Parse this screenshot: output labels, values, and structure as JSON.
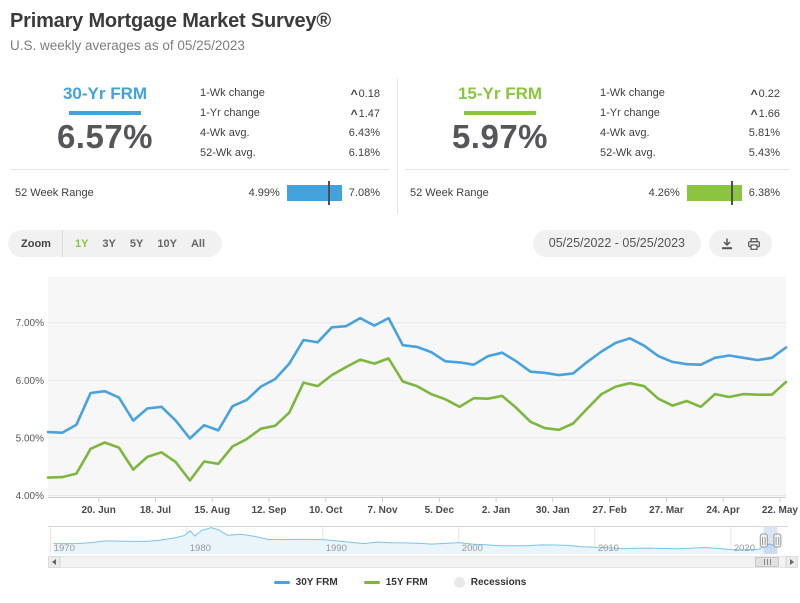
{
  "header": {
    "title": "Primary Mortgage Market Survey®",
    "subtitle": "U.S. weekly averages as of 05/25/2023"
  },
  "cards": [
    {
      "name": "30-Yr FRM",
      "rate": "6.57%",
      "accent_color": "#41a2dc",
      "stats": [
        {
          "label": "1-Wk change",
          "value": "0.18",
          "direction": "up"
        },
        {
          "label": "1-Yr change",
          "value": "1.47",
          "direction": "up"
        },
        {
          "label": "4-Wk avg.",
          "value": "6.43%",
          "direction": ""
        },
        {
          "label": "52-Wk avg.",
          "value": "6.18%",
          "direction": ""
        }
      ],
      "week_range": {
        "label": "52 Week Range",
        "low": "4.99%",
        "high": "7.08%",
        "marker_pct": 75.6
      }
    },
    {
      "name": "15-Yr FRM",
      "rate": "5.97%",
      "accent_color": "#8bc540",
      "stats": [
        {
          "label": "1-Wk change",
          "value": "0.22",
          "direction": "up"
        },
        {
          "label": "1-Yr change",
          "value": "1.66",
          "direction": "up"
        },
        {
          "label": "4-Wk avg.",
          "value": "5.81%",
          "direction": ""
        },
        {
          "label": "52-Wk avg.",
          "value": "5.43%",
          "direction": ""
        }
      ],
      "week_range": {
        "label": "52 Week Range",
        "low": "4.26%",
        "high": "6.38%",
        "marker_pct": 80.7
      }
    }
  ],
  "toolbar": {
    "zoom_label": "Zoom",
    "range_buttons": [
      {
        "label": "1Y",
        "active": true
      },
      {
        "label": "3Y",
        "active": false
      },
      {
        "label": "5Y",
        "active": false
      },
      {
        "label": "10Y",
        "active": false
      },
      {
        "label": "All",
        "active": false
      }
    ],
    "date_range": "05/25/2022 - 05/25/2023",
    "icons": [
      "download-icon",
      "print-icon"
    ]
  },
  "chart_data": {
    "type": "line",
    "title": "",
    "xlabel": "",
    "ylabel": "",
    "grid": "horizontal",
    "legend_position": "bottom-center",
    "y_ticks": [
      "4.00%",
      "5.00%",
      "6.00%",
      "7.00%"
    ],
    "ylim": [
      3.97,
      7.8
    ],
    "x_tick_labels": [
      "20. Jun",
      "18. Jul",
      "15. Aug",
      "12. Sep",
      "10. Oct",
      "7. Nov",
      "5. Dec",
      "2. Jan",
      "30. Jan",
      "27. Feb",
      "27. Mar",
      "24. Apr",
      "22. May"
    ],
    "x_tick_day_offsets": [
      25,
      53,
      81,
      109,
      137,
      165,
      193,
      221,
      249,
      277,
      305,
      333,
      361
    ],
    "x_total_days": 364,
    "series": [
      {
        "name": "30Y FRM",
        "color": "#47a2de",
        "values": [
          5.1,
          5.09,
          5.23,
          5.78,
          5.81,
          5.7,
          5.3,
          5.51,
          5.54,
          5.3,
          4.99,
          5.22,
          5.13,
          5.55,
          5.66,
          5.89,
          6.02,
          6.29,
          6.7,
          6.66,
          6.92,
          6.94,
          7.08,
          6.95,
          7.08,
          6.61,
          6.58,
          6.49,
          6.33,
          6.31,
          6.27,
          6.42,
          6.48,
          6.33,
          6.15,
          6.13,
          6.09,
          6.12,
          6.32,
          6.5,
          6.65,
          6.73,
          6.6,
          6.42,
          6.32,
          6.28,
          6.27,
          6.39,
          6.43,
          6.39,
          6.35,
          6.39,
          6.57
        ]
      },
      {
        "name": "15Y FRM",
        "color": "#7eb73f",
        "values": [
          4.31,
          4.32,
          4.38,
          4.81,
          4.92,
          4.83,
          4.45,
          4.67,
          4.75,
          4.58,
          4.26,
          4.59,
          4.55,
          4.85,
          4.98,
          5.16,
          5.21,
          5.44,
          5.96,
          5.9,
          6.09,
          6.23,
          6.36,
          6.29,
          6.38,
          5.98,
          5.9,
          5.76,
          5.67,
          5.54,
          5.69,
          5.68,
          5.73,
          5.52,
          5.28,
          5.17,
          5.14,
          5.25,
          5.51,
          5.76,
          5.89,
          5.95,
          5.9,
          5.68,
          5.56,
          5.64,
          5.54,
          5.76,
          5.71,
          5.76,
          5.75,
          5.75,
          5.97
        ]
      }
    ],
    "navigator": {
      "color": "#7cc4e8",
      "fill": "#e9f4fb",
      "year_labels": [
        "1970",
        "1980",
        "1990",
        "2000",
        "2010",
        "2020"
      ],
      "year_ticks": [
        1970,
        1980,
        1990,
        2000,
        2010,
        2020
      ],
      "year_range": [
        1969.8,
        2024.2
      ],
      "value_range": [
        0,
        19
      ],
      "selection_years": [
        2022.42,
        2023.42
      ],
      "points": [
        [
          1970.2,
          7.3
        ],
        [
          1972,
          7.38
        ],
        [
          1973,
          8.04
        ],
        [
          1974,
          9.19
        ],
        [
          1975,
          9.05
        ],
        [
          1976,
          8.87
        ],
        [
          1977,
          8.85
        ],
        [
          1978,
          9.64
        ],
        [
          1979,
          11.2
        ],
        [
          1979.8,
          12.9
        ],
        [
          1980.25,
          16.3
        ],
        [
          1980.6,
          12.7
        ],
        [
          1981.1,
          16.6
        ],
        [
          1981.8,
          18.6
        ],
        [
          1982.3,
          17.2
        ],
        [
          1983,
          13.2
        ],
        [
          1984,
          13.9
        ],
        [
          1985,
          12.4
        ],
        [
          1986,
          10.2
        ],
        [
          1987,
          10.2
        ],
        [
          1988,
          10.3
        ],
        [
          1989,
          10.3
        ],
        [
          1990,
          10.1
        ],
        [
          1991,
          9.25
        ],
        [
          1992,
          8.39
        ],
        [
          1993,
          7.31
        ],
        [
          1994,
          8.38
        ],
        [
          1995,
          7.93
        ],
        [
          1996,
          7.81
        ],
        [
          1997,
          7.6
        ],
        [
          1998,
          6.94
        ],
        [
          1999,
          7.44
        ],
        [
          2000,
          8.05
        ],
        [
          2001,
          6.97
        ],
        [
          2002,
          6.54
        ],
        [
          2003,
          5.83
        ],
        [
          2004,
          5.84
        ],
        [
          2005,
          5.87
        ],
        [
          2006,
          6.41
        ],
        [
          2007,
          6.34
        ],
        [
          2008,
          6.03
        ],
        [
          2009,
          5.04
        ],
        [
          2010,
          4.69
        ],
        [
          2011,
          4.45
        ],
        [
          2012,
          3.66
        ],
        [
          2013,
          3.98
        ],
        [
          2014,
          4.17
        ],
        [
          2015,
          3.85
        ],
        [
          2016,
          3.65
        ],
        [
          2017,
          3.99
        ],
        [
          2018,
          4.54
        ],
        [
          2019,
          3.94
        ],
        [
          2020,
          3.1
        ],
        [
          2021,
          2.96
        ],
        [
          2022,
          3.22
        ],
        [
          2022.5,
          5.3
        ],
        [
          2022.85,
          7.08
        ],
        [
          2023.05,
          6.13
        ],
        [
          2023.2,
          6.6
        ],
        [
          2023.42,
          6.57
        ]
      ]
    }
  },
  "legend": [
    {
      "label": "30Y FRM",
      "color": "#47a2de",
      "shape": "line"
    },
    {
      "label": "15Y FRM",
      "color": "#7eb73f",
      "shape": "line"
    },
    {
      "label": "Recessions",
      "color": "#e9e9e9",
      "shape": "circle"
    }
  ]
}
